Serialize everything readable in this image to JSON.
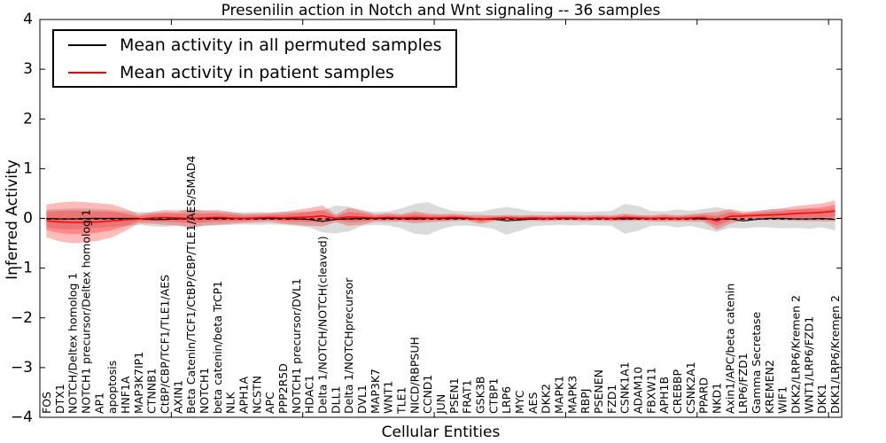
{
  "chart": {
    "title": "Presenilin action in Notch and Wnt signaling -- 36 samples",
    "xlabel": "Cellular Entities",
    "ylabel": "Inferred Activity"
  },
  "legend": {
    "items": [
      {
        "label": "Mean activity in all permuted samples",
        "color": "#000000"
      },
      {
        "label": "Mean activity in patient samples",
        "color": "#ff0000"
      }
    ]
  },
  "chart_data": {
    "type": "line",
    "title": "Presenilin action in Notch and Wnt signaling -- 36 samples",
    "xlabel": "Cellular Entities",
    "ylabel": "Inferred Activity",
    "ylim": [
      -4,
      4
    ],
    "yticks": [
      -4,
      -3,
      -2,
      -1,
      0,
      1,
      2,
      3,
      4
    ],
    "xtick_positions": [
      10,
      20,
      30,
      40,
      50,
      60
    ],
    "grid": false,
    "legend_position": "upper left",
    "zero_reference_dashed_line": true,
    "categories": [
      "FOS",
      "DTX1",
      "NOTCH/Deltex homolog 1",
      "NOTCH1 precursor/Deltex homolog 1",
      "AP1",
      "apoptosis",
      "HNF1A",
      "MAP3K7IP1",
      "CTNNB1",
      "CtBP/CBP/TCF1/TLE1/AES",
      "AXIN1",
      "Beta Catenin/TCF1/CtBP/CBP/TLE1/AES/SMAD4",
      "NOTCH1",
      "beta catenin/beta TrCP1",
      "NLK",
      "APH1A",
      "NCSTN",
      "APC",
      "PPP2R5D",
      "NOTCH1 precursor/DVL1",
      "HDAC1",
      "Delta 1/NOTCH/NOTCH(cleaved)",
      "DLL1",
      "Delta 1/NOTCHprecursor",
      "DVL1",
      "MAP3K7",
      "WNT1",
      "TLE1",
      "NICD/RBPSUH",
      "CCND1",
      "JUN",
      "PSEN1",
      "FRAT1",
      "GSK3B",
      "CTBP1",
      "LRP6",
      "MYC",
      "AES",
      "DKK2",
      "MAPK1",
      "MAPK3",
      "RBPJ",
      "PSENEN",
      "FZD1",
      "CSNK1A1",
      "ADAM10",
      "FBXW11",
      "APH1B",
      "CREBBP",
      "CSNK2A1",
      "PPARD",
      "NKD1",
      "Axin1/APC/beta catenin",
      "LRP6/FZD1",
      "Gamma Secretase",
      "KREMEN2",
      "WIF1",
      "DKK2/LRP6/Kremen 2",
      "WNT1/LRP6/FZD1",
      "DKK1",
      "DKK1/LRP6/Kremen 2"
    ],
    "series": [
      {
        "name": "Mean activity in all permuted samples",
        "color": "#000000",
        "band_color": "rgba(110,110,110,0.25)",
        "values": [
          0,
          -0.01,
          -0.01,
          0,
          0,
          0,
          0,
          0,
          -0.02,
          -0.02,
          -0.01,
          0,
          0,
          0,
          0,
          0,
          0,
          0,
          0,
          -0.01,
          -0.02,
          -0.06,
          -0.02,
          -0.01,
          0,
          0,
          0,
          0,
          -0.01,
          0,
          0,
          0,
          0,
          -0.02,
          -0.01,
          -0.05,
          -0.03,
          -0.01,
          0,
          0,
          0,
          0,
          0,
          0,
          -0.01,
          0,
          0,
          0,
          0,
          0,
          -0.01,
          -0.02,
          -0.01,
          -0.05,
          -0.02,
          0,
          0,
          -0.01,
          -0.01,
          0,
          -0.02
        ],
        "band": [
          0.18,
          0.2,
          0.21,
          0.2,
          0.19,
          0.17,
          0.15,
          0.13,
          0.14,
          0.15,
          0.14,
          0.2,
          0.15,
          0.14,
          0.13,
          0.12,
          0.13,
          0.12,
          0.13,
          0.14,
          0.16,
          0.22,
          0.28,
          0.25,
          0.15,
          0.13,
          0.14,
          0.2,
          0.3,
          0.33,
          0.22,
          0.15,
          0.14,
          0.15,
          0.2,
          0.28,
          0.22,
          0.15,
          0.14,
          0.13,
          0.14,
          0.13,
          0.14,
          0.15,
          0.3,
          0.25,
          0.15,
          0.14,
          0.18,
          0.15,
          0.2,
          0.25,
          0.18,
          0.15,
          0.16,
          0.18,
          0.2,
          0.18,
          0.2,
          0.18,
          0.22
        ]
      },
      {
        "name": "Mean activity in patient samples",
        "color": "#ff0000",
        "band_color": "rgba(255,0,0,0.27)",
        "values": [
          -0.05,
          -0.07,
          -0.08,
          -0.08,
          -0.07,
          -0.05,
          -0.03,
          -0.01,
          0.01,
          0.02,
          0.01,
          0,
          0.01,
          0.02,
          0.01,
          0,
          0.01,
          0.02,
          0.01,
          0.02,
          0.03,
          0.05,
          0,
          0.03,
          0.02,
          0.01,
          0.02,
          0.01,
          0.02,
          0.01,
          0.01,
          0.02,
          0.01,
          -0.02,
          0,
          0.01,
          0,
          0.01,
          0,
          0.01,
          0.01,
          0,
          0.01,
          0,
          0.02,
          0.01,
          0,
          0.01,
          0,
          0.01,
          0.02,
          -0.05,
          0.04,
          0.05,
          0.06,
          0.07,
          0.08,
          0.1,
          0.11,
          0.12,
          0.15
        ],
        "band": [
          0.22,
          0.26,
          0.28,
          0.27,
          0.25,
          0.22,
          0.15,
          0.06,
          0.08,
          0.1,
          0.1,
          0.12,
          0.1,
          0.1,
          0.08,
          0.06,
          0.06,
          0.06,
          0.08,
          0.1,
          0.12,
          0.14,
          0.05,
          0.12,
          0.1,
          0.05,
          0.06,
          0.05,
          0.08,
          0.06,
          0.05,
          0.05,
          0.04,
          0.06,
          0.04,
          0.04,
          0.04,
          0.04,
          0.04,
          0.04,
          0.04,
          0.04,
          0.04,
          0.04,
          0.05,
          0.04,
          0.04,
          0.05,
          0.04,
          0.05,
          0.06,
          0.12,
          0.1,
          0.06,
          0.06,
          0.07,
          0.08,
          0.1,
          0.11,
          0.12,
          0.14
        ]
      }
    ]
  }
}
